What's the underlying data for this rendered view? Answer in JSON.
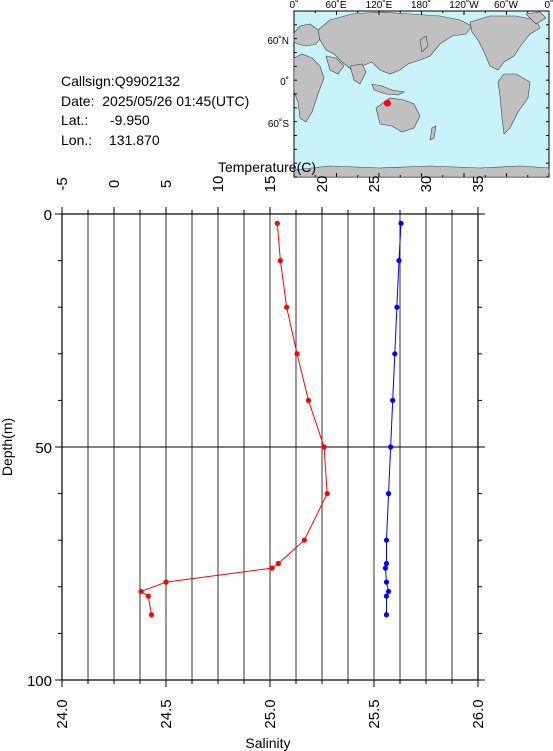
{
  "station": {
    "callsign": "Callsign:Q9902132",
    "date": "Date:  2025/05/26 01:45(UTC)",
    "lat_label": "Lat.:",
    "lat_value": "-9.950",
    "lon_label": "Lon.:",
    "lon_value": "131.870"
  },
  "map": {
    "top_labels": [
      "0˚",
      "60˚E",
      "120˚E",
      "180˚",
      "120˚W",
      "60˚W",
      "0˚"
    ],
    "lat_labels": [
      "60˚N",
      "0˚",
      "60˚S"
    ],
    "ocean_color": "#c9f3fa",
    "land_color": "#c0c0c0",
    "marker_color": "#ff0000",
    "marker": {
      "lat": -9.95,
      "lon": 131.87
    }
  },
  "chart_data": {
    "type": "line",
    "title": "",
    "ylabel": "Depth(m)",
    "ylim": [
      0,
      100
    ],
    "y_ticks": [
      "0",
      "50",
      "100"
    ],
    "top_axis": {
      "label": "Temperature(C)",
      "range": [
        -5,
        35
      ],
      "ticks": [
        "-5",
        "0",
        "5",
        "10",
        "15",
        "20",
        "25",
        "30",
        "35"
      ]
    },
    "bottom_axis": {
      "label": "Salinity",
      "range": [
        24.0,
        26.0
      ],
      "ticks": [
        "24.0",
        "24.5",
        "25.0",
        "25.5",
        "26.0"
      ]
    },
    "series": [
      {
        "axis": "top",
        "color": "#ff0000",
        "points": [
          [
            15.7,
            2
          ],
          [
            16.0,
            10
          ],
          [
            16.6,
            20
          ],
          [
            17.6,
            30
          ],
          [
            18.7,
            40
          ],
          [
            20.2,
            50
          ],
          [
            20.5,
            60
          ],
          [
            18.3,
            70
          ],
          [
            15.8,
            75
          ],
          [
            15.2,
            76
          ],
          [
            5.0,
            79
          ],
          [
            2.6,
            81
          ],
          [
            3.3,
            82
          ],
          [
            3.6,
            86
          ]
        ]
      },
      {
        "axis": "bottom",
        "color": "#0000ff",
        "points": [
          [
            25.63,
            2
          ],
          [
            25.62,
            10
          ],
          [
            25.61,
            20
          ],
          [
            25.6,
            30
          ],
          [
            25.59,
            40
          ],
          [
            25.58,
            50
          ],
          [
            25.57,
            60
          ],
          [
            25.56,
            70
          ],
          [
            25.56,
            75
          ],
          [
            25.555,
            76
          ],
          [
            25.56,
            79
          ],
          [
            25.57,
            81
          ],
          [
            25.56,
            82
          ],
          [
            25.56,
            86
          ]
        ]
      }
    ]
  }
}
